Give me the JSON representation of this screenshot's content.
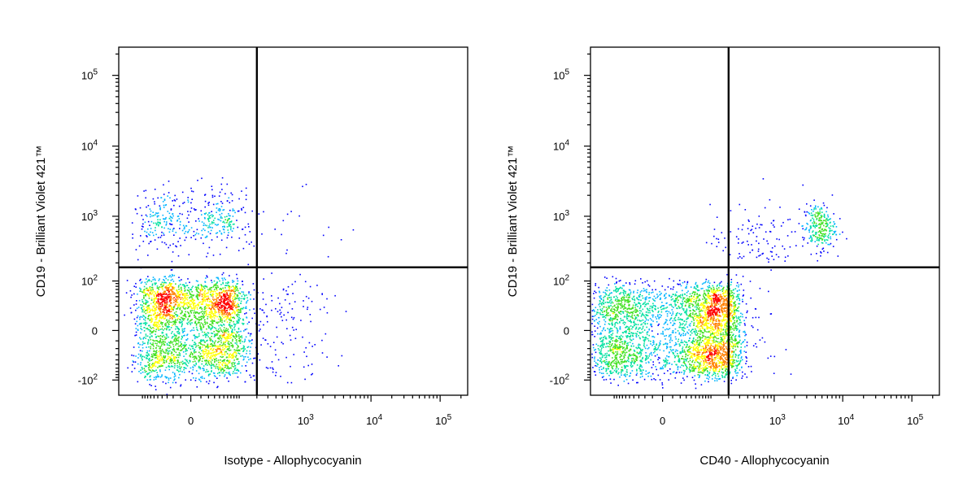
{
  "chart_data": [
    {
      "type": "scatter",
      "xlabel": "Isotype - Allophycocyanin",
      "ylabel": "CD19 - Brilliant Violet 421™",
      "x_scale": "biexponential",
      "y_scale": "biexponential",
      "x_ticks": [
        {
          "value": 0,
          "base": "0",
          "exp": ""
        },
        {
          "value": 1000,
          "base": "10",
          "exp": "3"
        },
        {
          "value": 10000,
          "base": "10",
          "exp": "4"
        },
        {
          "value": 100000,
          "base": "10",
          "exp": "5"
        }
      ],
      "y_ticks": [
        {
          "value": -100,
          "base": "-10",
          "exp": "2"
        },
        {
          "value": 0,
          "base": "0",
          "exp": ""
        },
        {
          "value": 100,
          "base": "10",
          "exp": "2"
        },
        {
          "value": 1000,
          "base": "10",
          "exp": "3"
        },
        {
          "value": 10000,
          "base": "10",
          "exp": "4"
        },
        {
          "value": 100000,
          "base": "10",
          "exp": "5"
        }
      ],
      "xlim": [
        -250,
        250000
      ],
      "ylim": [
        -180,
        250000
      ],
      "gate": {
        "x": 200,
        "y": 170
      },
      "colormap": [
        "#0000ff",
        "#00b4ff",
        "#00e0a0",
        "#40e020",
        "#ffff00",
        "#ff8000",
        "#ff0000"
      ],
      "populations": [
        {
          "name": "",
          "count": 3000,
          "x_center": 0,
          "x_spread": 55,
          "y_center": 10,
          "y_spread": 45
        },
        {
          "name": "",
          "count": 420,
          "x_center": 0,
          "x_spread": 55,
          "y_log_center": 2.95,
          "y_log_spread": 0.22
        },
        {
          "name": "",
          "count": 170,
          "x_log_center": 2.6,
          "x_log_spread": 0.4,
          "y_center": 0,
          "y_spread": 45
        },
        {
          "name": "",
          "count": 25,
          "x_log_center": 2.7,
          "x_log_spread": 0.5,
          "y_log_center": 2.8,
          "y_log_spread": 0.3
        }
      ]
    },
    {
      "type": "scatter",
      "xlabel": "CD40 - Allophycocyanin",
      "ylabel": "CD19 - Brilliant Violet 421™",
      "x_scale": "biexponential",
      "y_scale": "biexponential",
      "x_ticks": [
        {
          "value": 0,
          "base": "0",
          "exp": ""
        },
        {
          "value": 1000,
          "base": "10",
          "exp": "3"
        },
        {
          "value": 10000,
          "base": "10",
          "exp": "4"
        },
        {
          "value": 100000,
          "base": "10",
          "exp": "5"
        }
      ],
      "y_ticks": [
        {
          "value": -100,
          "base": "-10",
          "exp": "2"
        },
        {
          "value": 0,
          "base": "0",
          "exp": ""
        },
        {
          "value": 100,
          "base": "10",
          "exp": "2"
        },
        {
          "value": 1000,
          "base": "10",
          "exp": "3"
        },
        {
          "value": 10000,
          "base": "10",
          "exp": "4"
        },
        {
          "value": 100000,
          "base": "10",
          "exp": "5"
        }
      ],
      "xlim": [
        -250,
        250000
      ],
      "ylim": [
        -180,
        250000
      ],
      "gate": {
        "x": 200,
        "y": 170
      },
      "colormap": [
        "#0000ff",
        "#00b4ff",
        "#00e0a0",
        "#40e020",
        "#ffff00",
        "#ff8000",
        "#ff0000"
      ],
      "populations": [
        {
          "name": "",
          "count": 3600,
          "x_center": 40,
          "x_spread": 120,
          "y_center": 0,
          "y_spread": 40
        },
        {
          "name": "",
          "count": 260,
          "x_log_center": 3.65,
          "x_log_spread": 0.12,
          "y_log_center": 2.85,
          "y_log_spread": 0.17
        },
        {
          "name": "",
          "count": 110,
          "x_log_center": 2.7,
          "x_log_spread": 0.35,
          "y_log_center": 2.65,
          "y_log_spread": 0.25
        },
        {
          "name": "",
          "count": 90,
          "x_log_center": 2.4,
          "x_log_spread": 0.35,
          "y_center": 0,
          "y_spread": 45
        }
      ]
    }
  ]
}
